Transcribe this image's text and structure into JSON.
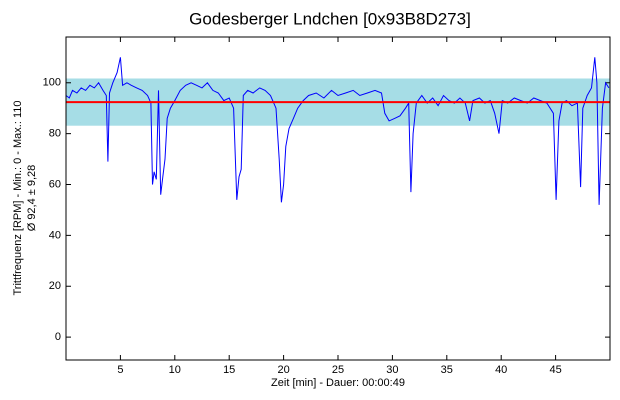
{
  "chart_data": {
    "type": "line",
    "title": "Godesberger Lndchen [0x93B8D273]",
    "ylabel": [
      "Trittfrequenz [RPM] - Min.: 0 - Max.: 110",
      "Ø 92,4 ± 9,28"
    ],
    "xlabel": "Zeit [min] - Dauer: 00:00:49",
    "xlim": [
      0,
      50
    ],
    "ylim": [
      -9,
      118
    ],
    "xticks": [
      5,
      10,
      15,
      20,
      25,
      30,
      35,
      40,
      45
    ],
    "yticks": [
      0,
      20,
      40,
      60,
      80,
      100
    ],
    "band": {
      "mean": 92.4,
      "std": 9.28,
      "color": "#a6dde6",
      "line_color": "#ff0000"
    },
    "series": [
      {
        "color": "#0000ff",
        "x": [
          0,
          0.3,
          0.6,
          1,
          1.4,
          1.8,
          2.2,
          2.6,
          3,
          3.4,
          3.7,
          3.85,
          4.0,
          4.3,
          4.7,
          5.0,
          5.2,
          5.6,
          6,
          6.5,
          7,
          7.5,
          7.8,
          7.95,
          8.1,
          8.3,
          8.5,
          8.7,
          8.9,
          9.1,
          9.3,
          9.6,
          10,
          10.5,
          11,
          11.5,
          12,
          12.5,
          13,
          13.5,
          14,
          14.5,
          15,
          15.4,
          15.7,
          15.9,
          16.1,
          16.3,
          16.7,
          17.2,
          17.8,
          18.3,
          18.8,
          19.3,
          19.6,
          19.8,
          20,
          20.2,
          20.5,
          20.9,
          21.3,
          21.8,
          22.3,
          23,
          23.7,
          24.4,
          25,
          25.7,
          26.4,
          27,
          27.7,
          28.4,
          29,
          29.3,
          29.7,
          30.2,
          30.7,
          31.2,
          31.5,
          31.7,
          31.9,
          32.2,
          32.7,
          33.2,
          33.7,
          34.2,
          34.7,
          35.2,
          35.7,
          36.2,
          36.7,
          37.1,
          37.4,
          38,
          38.5,
          39,
          39.4,
          39.8,
          40.1,
          40.6,
          41.2,
          41.8,
          42.4,
          43,
          43.6,
          44.2,
          44.8,
          45.05,
          45.3,
          45.6,
          46,
          46.5,
          47,
          47.3,
          47.5,
          47.9,
          48.3,
          48.6,
          48.8,
          49,
          49.3,
          49.6,
          49.9
        ],
        "values": [
          95,
          94,
          97,
          96,
          98,
          97,
          99,
          98,
          100,
          97,
          95,
          69,
          96,
          100,
          104,
          110,
          99,
          100,
          99,
          98,
          97,
          95,
          92,
          60,
          65,
          62,
          97,
          56,
          63,
          70,
          86,
          90,
          93,
          97,
          99,
          100,
          99,
          98,
          100,
          97,
          96,
          93,
          94,
          90,
          54,
          63,
          66,
          95,
          97,
          96,
          98,
          97,
          95,
          90,
          70,
          53,
          60,
          75,
          82,
          86,
          90,
          93,
          95,
          96,
          94,
          97,
          95,
          96,
          97,
          95,
          96,
          97,
          96,
          88,
          85,
          86,
          87,
          90,
          92,
          57,
          80,
          92,
          95,
          92,
          94,
          91,
          95,
          93,
          92,
          94,
          92,
          85,
          93,
          94,
          92,
          93,
          88,
          80,
          93,
          92,
          94,
          93,
          92,
          94,
          93,
          92,
          88,
          54,
          85,
          92,
          93,
          91,
          92,
          59,
          90,
          95,
          98,
          110,
          100,
          52,
          90,
          100,
          98
        ]
      }
    ]
  }
}
